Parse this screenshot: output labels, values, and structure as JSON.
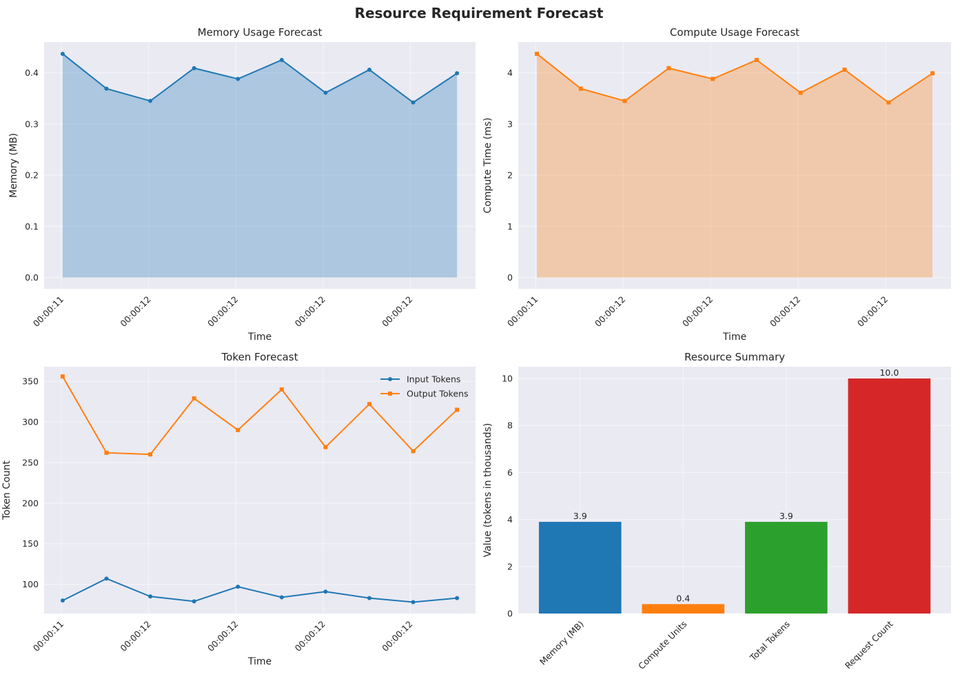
{
  "figure_title": "Resource Requirement Forecast",
  "colors": {
    "axes_bg": "#EAEAF2",
    "blue": "#1f77b4",
    "orange": "#ff7f0e",
    "green": "#2ca02c",
    "red": "#d62728"
  },
  "chart_data": [
    {
      "id": "memory",
      "type": "area",
      "title": "Memory Usage Forecast",
      "xlabel": "Time",
      "ylabel": "Memory (MB)",
      "x_ticks": [
        "00:00:11",
        "00:00:12",
        "00:00:12",
        "00:00:12",
        "00:00:12"
      ],
      "ylim": [
        -0.022,
        0.46
      ],
      "y_ticks": [
        0.0,
        0.1,
        0.2,
        0.3,
        0.4
      ],
      "series": [
        {
          "values": [
            0.437,
            0.369,
            0.345,
            0.409,
            0.388,
            0.425,
            0.361,
            0.406,
            0.342,
            0.399
          ],
          "color": "#1f77b4",
          "marker": "circle"
        }
      ],
      "grid": true
    },
    {
      "id": "compute",
      "type": "area",
      "title": "Compute Usage Forecast",
      "xlabel": "Time",
      "ylabel": "Compute Time (ms)",
      "x_ticks": [
        "00:00:11",
        "00:00:12",
        "00:00:12",
        "00:00:12",
        "00:00:12"
      ],
      "ylim": [
        -0.22,
        4.6
      ],
      "y_ticks": [
        0,
        1,
        2,
        3,
        4
      ],
      "series": [
        {
          "values": [
            4.37,
            3.69,
            3.45,
            4.09,
            3.88,
            4.25,
            3.61,
            4.06,
            3.42,
            3.99
          ],
          "color": "#ff7f0e",
          "marker": "square"
        }
      ],
      "grid": true
    },
    {
      "id": "tokens",
      "type": "line",
      "title": "Token Forecast",
      "xlabel": "Time",
      "ylabel": "Token Count",
      "x_ticks": [
        "00:00:11",
        "00:00:12",
        "00:00:12",
        "00:00:12",
        "00:00:12"
      ],
      "ylim": [
        64,
        368
      ],
      "y_ticks": [
        100,
        150,
        200,
        250,
        300,
        350
      ],
      "legend_position": "top-right",
      "series": [
        {
          "name": "Input Tokens",
          "values": [
            80,
            107,
            85,
            79,
            97,
            84,
            91,
            83,
            78,
            83
          ],
          "color": "#1f77b4",
          "marker": "circle"
        },
        {
          "name": "Output Tokens",
          "values": [
            356,
            262,
            260,
            329,
            290,
            340,
            269,
            322,
            264,
            315
          ],
          "color": "#ff7f0e",
          "marker": "square"
        }
      ],
      "grid": true
    },
    {
      "id": "summary",
      "type": "bar",
      "title": "Resource Summary",
      "xlabel": "",
      "ylabel": "Value (tokens in thousands)",
      "categories": [
        "Memory (MB)",
        "Compute Units",
        "Total Tokens",
        "Request Count"
      ],
      "values": [
        3.9,
        0.4,
        3.9,
        10.0
      ],
      "value_labels": [
        "3.9",
        "0.4",
        "3.9",
        "10.0"
      ],
      "colors": [
        "#1f77b4",
        "#ff7f0e",
        "#2ca02c",
        "#d62728"
      ],
      "ylim": [
        0,
        10.5
      ],
      "y_ticks": [
        0,
        2,
        4,
        6,
        8,
        10
      ],
      "grid": true
    }
  ]
}
